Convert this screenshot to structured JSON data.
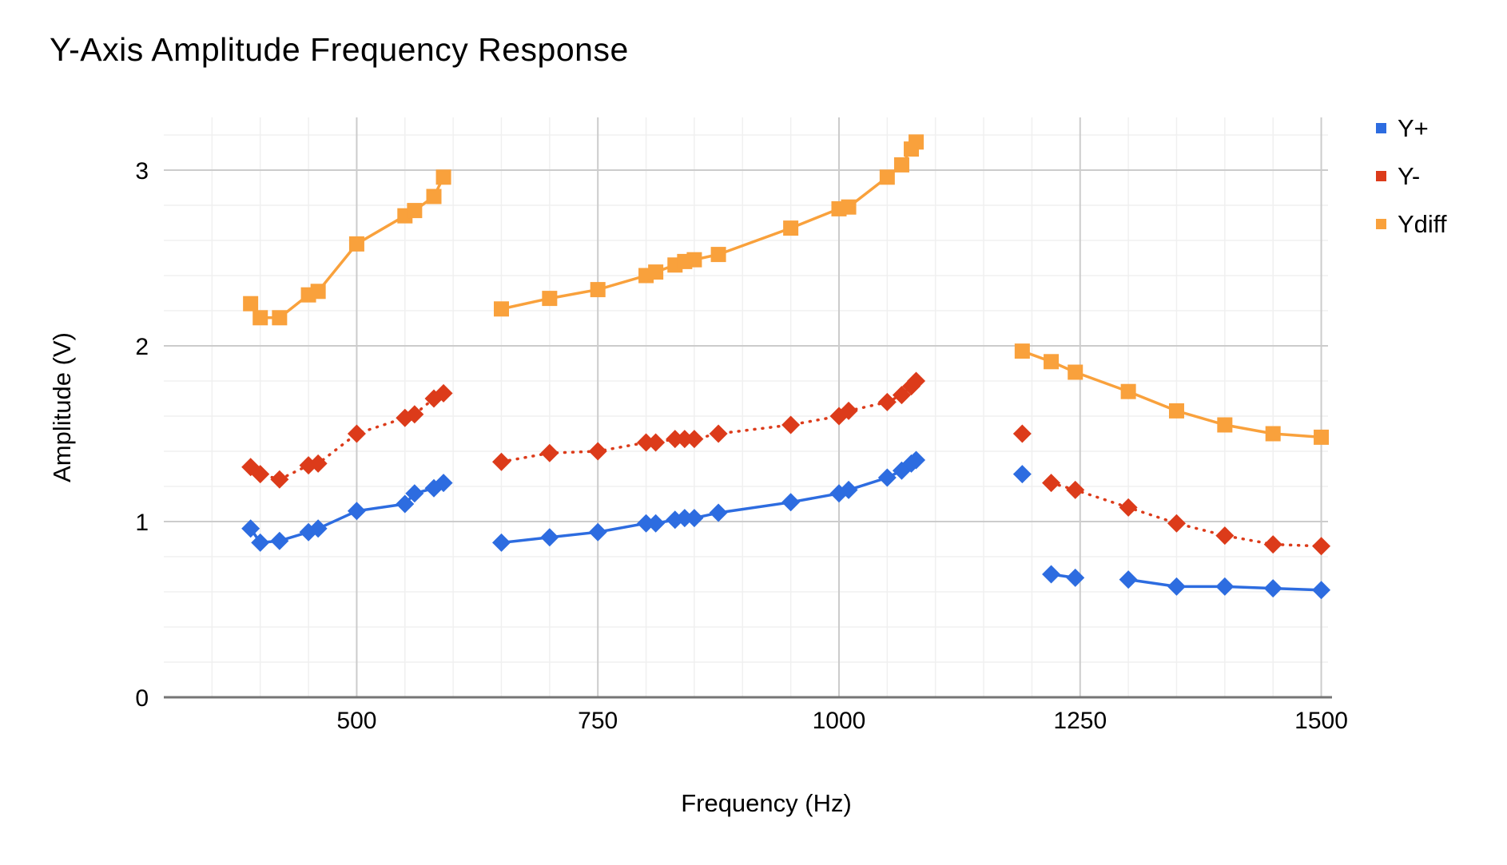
{
  "chart_data": {
    "type": "line",
    "title": "Y-Axis Amplitude Frequency Response",
    "xlabel": "Frequency (Hz)",
    "ylabel": "Amplitude (V)",
    "xlim": [
      300,
      1507
    ],
    "ylim": [
      0,
      3.3
    ],
    "x_major_ticks": [
      500,
      750,
      1000,
      1250,
      1500
    ],
    "x_minor_step": 50,
    "y_major_ticks": [
      0,
      1,
      2,
      3
    ],
    "y_minor_step": 0.2,
    "grid": "on",
    "legend_position": "right",
    "colors": {
      "background": "#ffffff",
      "text": "#000000",
      "grid_major": "#cccccc",
      "grid_minor": "#f0f0f0",
      "axis_baseline": "#757575"
    },
    "series": [
      {
        "name": "Y+",
        "color": "#2d6ce0",
        "marker": "diamond",
        "line_style": "solid",
        "segments": [
          [
            [
              390,
              0.96
            ],
            [
              400,
              0.88
            ],
            [
              420,
              0.89
            ],
            [
              450,
              0.94
            ],
            [
              460,
              0.96
            ],
            [
              500,
              1.06
            ],
            [
              550,
              1.1
            ],
            [
              560,
              1.16
            ],
            [
              580,
              1.19
            ],
            [
              590,
              1.22
            ]
          ],
          [
            [
              650,
              0.88
            ],
            [
              700,
              0.91
            ],
            [
              750,
              0.94
            ],
            [
              800,
              0.99
            ],
            [
              810,
              0.99
            ],
            [
              830,
              1.01
            ],
            [
              840,
              1.02
            ],
            [
              850,
              1.02
            ],
            [
              875,
              1.05
            ],
            [
              950,
              1.11
            ],
            [
              1000,
              1.16
            ],
            [
              1010,
              1.18
            ],
            [
              1050,
              1.25
            ],
            [
              1065,
              1.29
            ],
            [
              1075,
              1.33
            ],
            [
              1080,
              1.35
            ]
          ],
          [
            [
              1190,
              1.27
            ]
          ],
          [
            [
              1220,
              0.7
            ],
            [
              1245,
              0.68
            ]
          ],
          [
            [
              1300,
              0.67
            ],
            [
              1350,
              0.63
            ],
            [
              1400,
              0.63
            ],
            [
              1450,
              0.62
            ],
            [
              1500,
              0.61
            ]
          ]
        ]
      },
      {
        "name": "Y-",
        "color": "#dc3b1a",
        "marker": "diamond",
        "line_style": "dotted",
        "segments": [
          [
            [
              390,
              1.31
            ],
            [
              400,
              1.27
            ],
            [
              420,
              1.24
            ],
            [
              450,
              1.32
            ],
            [
              460,
              1.33
            ],
            [
              500,
              1.5
            ],
            [
              550,
              1.59
            ],
            [
              560,
              1.61
            ],
            [
              580,
              1.7
            ],
            [
              590,
              1.73
            ]
          ],
          [
            [
              650,
              1.34
            ],
            [
              700,
              1.39
            ],
            [
              750,
              1.4
            ],
            [
              800,
              1.45
            ],
            [
              810,
              1.45
            ],
            [
              830,
              1.47
            ],
            [
              840,
              1.47
            ],
            [
              850,
              1.47
            ],
            [
              875,
              1.5
            ],
            [
              950,
              1.55
            ],
            [
              1000,
              1.6
            ],
            [
              1010,
              1.63
            ],
            [
              1050,
              1.68
            ],
            [
              1065,
              1.72
            ],
            [
              1075,
              1.77
            ],
            [
              1080,
              1.8
            ]
          ],
          [
            [
              1190,
              1.5
            ]
          ],
          [
            [
              1220,
              1.22
            ],
            [
              1245,
              1.18
            ],
            [
              1300,
              1.08
            ],
            [
              1350,
              0.99
            ],
            [
              1400,
              0.92
            ],
            [
              1450,
              0.87
            ],
            [
              1500,
              0.86
            ]
          ]
        ]
      },
      {
        "name": "Ydiff",
        "color": "#f9a13c",
        "marker": "square",
        "line_style": "solid",
        "segments": [
          [
            [
              390,
              2.24
            ],
            [
              400,
              2.16
            ],
            [
              420,
              2.16
            ],
            [
              450,
              2.29
            ],
            [
              460,
              2.31
            ],
            [
              500,
              2.58
            ],
            [
              550,
              2.74
            ],
            [
              560,
              2.77
            ],
            [
              580,
              2.85
            ],
            [
              590,
              2.96
            ]
          ],
          [
            [
              650,
              2.21
            ],
            [
              700,
              2.27
            ],
            [
              750,
              2.32
            ],
            [
              800,
              2.4
            ],
            [
              810,
              2.42
            ],
            [
              830,
              2.46
            ],
            [
              840,
              2.48
            ],
            [
              850,
              2.49
            ],
            [
              875,
              2.52
            ],
            [
              950,
              2.67
            ],
            [
              1000,
              2.78
            ],
            [
              1010,
              2.79
            ],
            [
              1050,
              2.96
            ],
            [
              1065,
              3.03
            ],
            [
              1075,
              3.12
            ],
            [
              1080,
              3.16
            ]
          ],
          [
            [
              1190,
              1.97
            ],
            [
              1220,
              1.91
            ],
            [
              1245,
              1.85
            ],
            [
              1300,
              1.74
            ],
            [
              1350,
              1.63
            ],
            [
              1400,
              1.55
            ],
            [
              1450,
              1.5
            ],
            [
              1500,
              1.48
            ]
          ]
        ]
      }
    ]
  }
}
